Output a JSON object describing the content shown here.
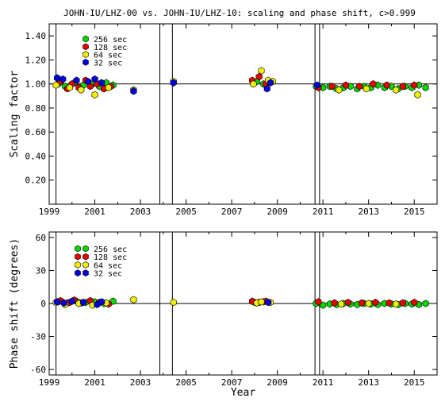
{
  "title": "JOHN-IU/LHZ-00 vs. JOHN-IU/LHZ-10: scaling and phase shift, c>0.999",
  "chart_data": [
    {
      "type": "scatter",
      "ylabel": "Scaling factor",
      "xlabel": "",
      "xlim": [
        1999.0,
        2016.0
      ],
      "ylim": [
        0.0,
        1.5
      ],
      "x_ticks": [
        1999,
        2001,
        2003,
        2005,
        2007,
        2009,
        2011,
        2013,
        2015
      ],
      "x_tick_labels": [
        "1999",
        "2001",
        "2003",
        "2005",
        "2007",
        "2009",
        "2011",
        "2013",
        "2015"
      ],
      "y_ticks": [
        0.2,
        0.4,
        0.6,
        0.8,
        1.0,
        1.2,
        1.4
      ],
      "y_tick_labels": [
        "0.20",
        "0.40",
        "0.60",
        "0.80",
        "1.00",
        "1.20",
        "1.40"
      ],
      "reference_line": 1.0,
      "vertical_lines": [
        1999.3,
        2003.85,
        2004.4,
        2010.65,
        2010.85
      ],
      "legend_position": "top-left",
      "series": [
        {
          "name": "256 sec",
          "color": "#00d800",
          "points": [
            [
              1999.4,
              1.0
            ],
            [
              1999.7,
              0.98
            ],
            [
              2000.1,
              1.01
            ],
            [
              2000.5,
              0.99
            ],
            [
              2000.9,
              1.0
            ],
            [
              2001.2,
              0.98
            ],
            [
              2001.5,
              1.01
            ],
            [
              2001.8,
              0.99
            ],
            [
              2008.1,
              1.02
            ],
            [
              2008.4,
              1.0
            ],
            [
              2010.7,
              0.98
            ],
            [
              2011.0,
              0.97
            ],
            [
              2011.3,
              0.98
            ],
            [
              2011.6,
              0.96
            ],
            [
              2011.9,
              0.97
            ],
            [
              2012.2,
              0.98
            ],
            [
              2012.5,
              0.96
            ],
            [
              2012.8,
              0.98
            ],
            [
              2013.1,
              0.97
            ],
            [
              2013.4,
              0.99
            ],
            [
              2013.7,
              0.97
            ],
            [
              2014.0,
              0.98
            ],
            [
              2014.3,
              0.96
            ],
            [
              2014.6,
              0.98
            ],
            [
              2014.9,
              0.97
            ],
            [
              2015.2,
              0.99
            ],
            [
              2015.5,
              0.97
            ]
          ]
        },
        {
          "name": "128 sec",
          "color": "#e80000",
          "points": [
            [
              1999.5,
              1.02
            ],
            [
              1999.8,
              0.96
            ],
            [
              2000.0,
              1.0
            ],
            [
              2000.3,
              0.97
            ],
            [
              2000.6,
              1.03
            ],
            [
              2000.8,
              0.98
            ],
            [
              2001.1,
              1.0
            ],
            [
              2001.4,
              0.96
            ],
            [
              2001.7,
              0.98
            ],
            [
              2007.9,
              1.03
            ],
            [
              2008.2,
              1.06
            ],
            [
              2008.5,
              1.0
            ],
            [
              2010.8,
              0.97
            ],
            [
              2011.4,
              0.98
            ],
            [
              2012.0,
              0.99
            ],
            [
              2012.6,
              0.98
            ],
            [
              2013.2,
              1.0
            ],
            [
              2013.8,
              0.99
            ],
            [
              2014.5,
              0.98
            ],
            [
              2015.0,
              0.99
            ]
          ]
        },
        {
          "name": "64 sec",
          "color": "#f0f000",
          "points": [
            [
              1999.3,
              0.99
            ],
            [
              1999.9,
              0.97
            ],
            [
              2000.4,
              0.95
            ],
            [
              2001.0,
              0.91
            ],
            [
              2001.6,
              0.97
            ],
            [
              2002.7,
              0.95
            ],
            [
              2004.45,
              1.02
            ],
            [
              2007.95,
              1.0
            ],
            [
              2008.3,
              1.11
            ],
            [
              2008.6,
              1.03
            ],
            [
              2008.8,
              1.02
            ],
            [
              2011.7,
              0.95
            ],
            [
              2012.9,
              0.96
            ],
            [
              2014.2,
              0.95
            ],
            [
              2015.15,
              0.91
            ]
          ]
        },
        {
          "name": "32 sec",
          "color": "#0000e0",
          "points": [
            [
              1999.35,
              1.05
            ],
            [
              1999.6,
              1.04
            ],
            [
              2000.2,
              1.03
            ],
            [
              2000.7,
              1.02
            ],
            [
              2001.0,
              1.04
            ],
            [
              2001.3,
              1.01
            ],
            [
              2002.7,
              0.94
            ],
            [
              2004.45,
              1.01
            ],
            [
              2008.55,
              0.96
            ],
            [
              2008.7,
              1.01
            ],
            [
              2010.75,
              0.99
            ]
          ]
        }
      ]
    },
    {
      "type": "scatter",
      "ylabel": "Phase shift (degrees)",
      "xlabel": "Year",
      "xlim": [
        1999.0,
        2016.0
      ],
      "ylim": [
        -65,
        65
      ],
      "x_ticks": [
        1999,
        2001,
        2003,
        2005,
        2007,
        2009,
        2011,
        2013,
        2015
      ],
      "x_tick_labels": [
        "1999",
        "2001",
        "2003",
        "2005",
        "2007",
        "2009",
        "2011",
        "2013",
        "2015"
      ],
      "y_ticks": [
        -60,
        -30,
        0,
        30,
        60
      ],
      "y_tick_labels": [
        "-60",
        "-30",
        "0",
        "30",
        "60"
      ],
      "reference_line": 0,
      "vertical_lines": [
        1999.3,
        2003.85,
        2004.4,
        2010.65,
        2010.85
      ],
      "legend_position": "top-left",
      "series": [
        {
          "name": "256 sec",
          "color": "#00d800",
          "points": [
            [
              1999.4,
              1.5
            ],
            [
              1999.8,
              0.5
            ],
            [
              2000.2,
              2.0
            ],
            [
              2000.6,
              1.0
            ],
            [
              2001.0,
              1.5
            ],
            [
              2001.4,
              0.0
            ],
            [
              2001.8,
              2.0
            ],
            [
              2008.0,
              1.0
            ],
            [
              2008.4,
              1.5
            ],
            [
              2010.7,
              0.0
            ],
            [
              2011.0,
              -1.5
            ],
            [
              2011.3,
              -0.5
            ],
            [
              2011.6,
              -1.0
            ],
            [
              2011.9,
              0.0
            ],
            [
              2012.2,
              -0.5
            ],
            [
              2012.5,
              -1.0
            ],
            [
              2012.8,
              0.0
            ],
            [
              2013.1,
              -0.5
            ],
            [
              2013.4,
              -1.0
            ],
            [
              2013.7,
              0.0
            ],
            [
              2014.0,
              -0.5
            ],
            [
              2014.3,
              -1.0
            ],
            [
              2014.6,
              0.0
            ],
            [
              2014.9,
              -0.5
            ],
            [
              2015.2,
              -1.0
            ],
            [
              2015.5,
              0.0
            ]
          ]
        },
        {
          "name": "128 sec",
          "color": "#e80000",
          "points": [
            [
              1999.5,
              2.5
            ],
            [
              1999.9,
              1.0
            ],
            [
              2000.1,
              3.0
            ],
            [
              2000.4,
              0.5
            ],
            [
              2000.8,
              2.5
            ],
            [
              2001.2,
              1.0
            ],
            [
              2001.6,
              -0.5
            ],
            [
              2007.9,
              2.0
            ],
            [
              2008.2,
              1.0
            ],
            [
              2008.5,
              2.0
            ],
            [
              2010.8,
              1.5
            ],
            [
              2011.5,
              0.5
            ],
            [
              2012.1,
              1.0
            ],
            [
              2012.7,
              0.5
            ],
            [
              2013.3,
              1.0
            ],
            [
              2013.9,
              0.5
            ],
            [
              2014.5,
              0.5
            ],
            [
              2015.0,
              1.0
            ]
          ]
        },
        {
          "name": "64 sec",
          "color": "#f0f000",
          "points": [
            [
              1999.3,
              1.0
            ],
            [
              1999.7,
              -1.0
            ],
            [
              2000.3,
              0.0
            ],
            [
              2000.9,
              -1.5
            ],
            [
              2001.5,
              0.5
            ],
            [
              2002.7,
              3.5
            ],
            [
              2004.45,
              1.0
            ],
            [
              2008.1,
              0.5
            ],
            [
              2008.3,
              1.5
            ],
            [
              2008.7,
              1.0
            ],
            [
              2011.8,
              -0.5
            ],
            [
              2013.0,
              0.0
            ],
            [
              2014.2,
              -0.5
            ]
          ]
        },
        {
          "name": "32 sec",
          "color": "#0000e0",
          "points": [
            [
              1999.35,
              1.5
            ],
            [
              1999.65,
              0.5
            ],
            [
              2000.0,
              2.0
            ],
            [
              2000.5,
              1.0
            ],
            [
              2001.1,
              -1.0
            ],
            [
              2001.3,
              1.5
            ],
            [
              2008.6,
              1.0
            ]
          ]
        }
      ]
    }
  ]
}
